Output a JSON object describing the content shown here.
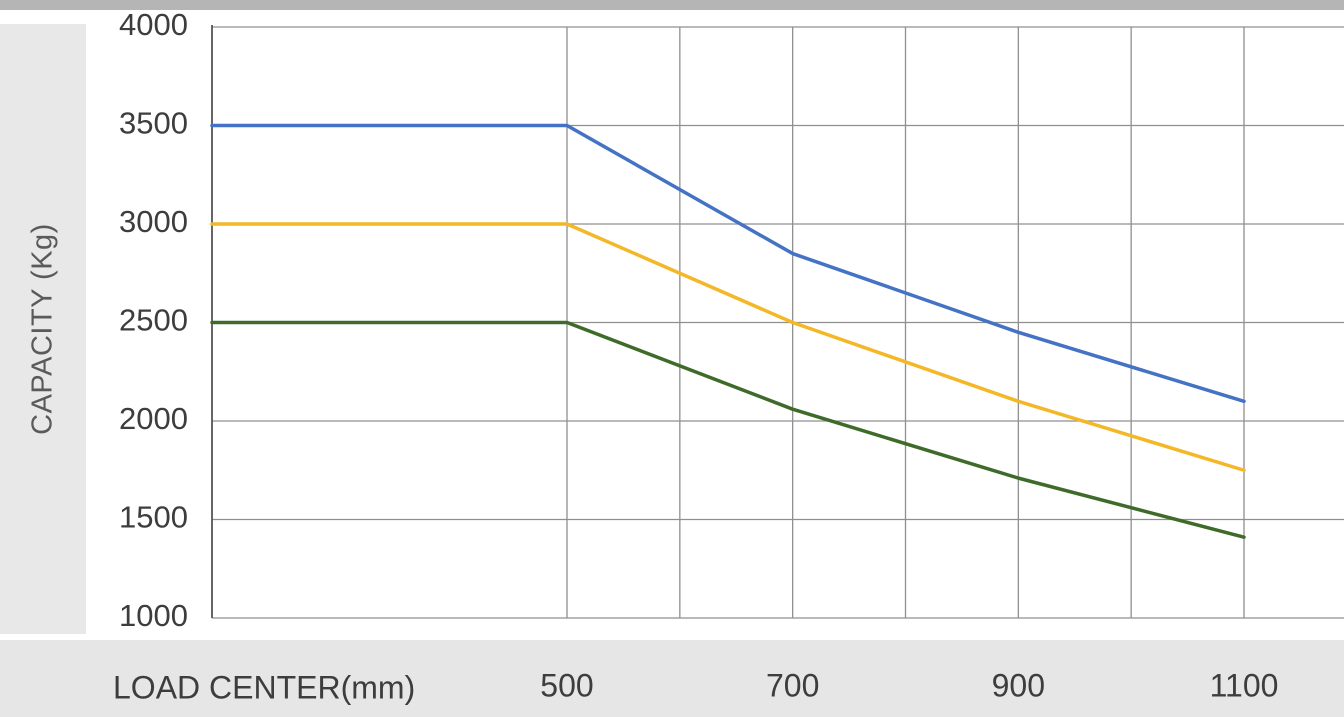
{
  "chart_data": {
    "type": "line",
    "title": "",
    "xlabel": "LOAD CENTER(mm)",
    "ylabel": "CAPACITY (Kg)",
    "xlim": [
      185,
      1100
    ],
    "ylim": [
      1000,
      4000
    ],
    "grid": true,
    "legend": "none",
    "x_ticks": [
      500,
      700,
      900,
      1100
    ],
    "y_ticks": [
      1000,
      1500,
      2000,
      2500,
      3000,
      3500,
      4000
    ],
    "x": [
      185,
      500,
      700,
      900,
      1100
    ],
    "series": [
      {
        "values": [
          3500,
          3500,
          2850,
          2450,
          2100
        ],
        "color": "#4472c4"
      },
      {
        "values": [
          3000,
          3000,
          2500,
          2100,
          1750
        ],
        "color": "#f4b728"
      },
      {
        "values": [
          2500,
          2500,
          2060,
          1710,
          1410
        ],
        "color": "#3f6b2a"
      }
    ]
  }
}
